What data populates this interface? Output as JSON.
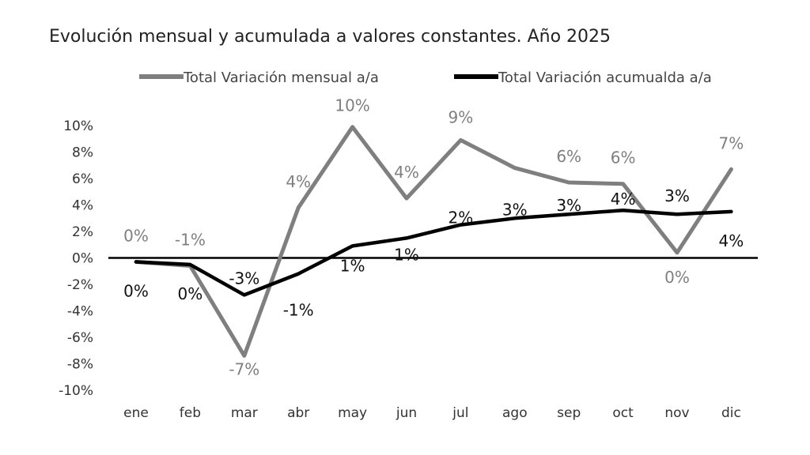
{
  "chart_data": {
    "type": "line",
    "title": "Evolución mensual y acumulada a valores constantes. Año 2025",
    "categories": [
      "ene",
      "feb",
      "mar",
      "abr",
      "may",
      "jun",
      "jul",
      "ago",
      "sep",
      "oct",
      "nov",
      "dic"
    ],
    "ylim": [
      -10,
      10
    ],
    "yticks": [
      10,
      8,
      6,
      4,
      2,
      0,
      -2,
      -4,
      -6,
      -8,
      -10
    ],
    "ytick_labels": [
      "10%",
      "8%",
      "6%",
      "4%",
      "2%",
      "0%",
      "-2%",
      "-4%",
      "-6%",
      "-8%",
      "-10%"
    ],
    "legend_position": "top",
    "grid": false,
    "series": [
      {
        "name": "Total Variación mensual a/a",
        "color": "#7f7f7f",
        "values": [
          -0.3,
          -0.6,
          -7.4,
          3.8,
          9.9,
          4.5,
          8.9,
          6.8,
          5.7,
          5.6,
          0.4,
          6.7
        ],
        "data_labels": [
          "0%",
          "-1%",
          "-7%",
          "4%",
          "10%",
          "4%",
          "9%",
          "",
          "6%",
          "6%",
          "0%",
          "7%"
        ]
      },
      {
        "name": "Total Variación acumualda a/a",
        "color": "#000000",
        "values": [
          -0.3,
          -0.5,
          -2.8,
          -1.2,
          0.9,
          1.5,
          2.5,
          3.0,
          3.3,
          3.6,
          3.3,
          3.5
        ],
        "data_labels": [
          "0%",
          "0%",
          "-3%",
          "-1%",
          "1%",
          "1%",
          "2%",
          "3%",
          "3%",
          "4%",
          "3%",
          "4%"
        ]
      }
    ]
  }
}
